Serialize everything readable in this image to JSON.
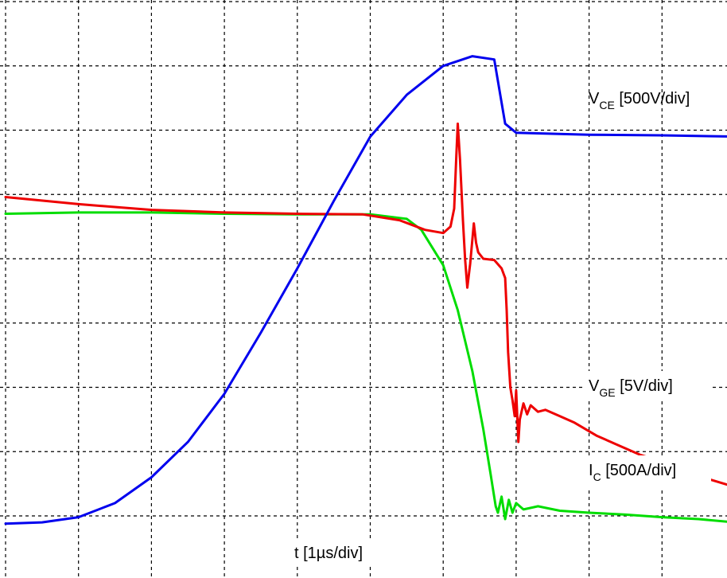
{
  "chart_data": {
    "type": "line",
    "xlabel": "t [1µs/div]",
    "x_unit": "div",
    "y_unit": "div",
    "xlim": [
      0,
      11.2
    ],
    "ylim": [
      -0.5,
      8.5
    ],
    "grid": {
      "x_divisions": 10,
      "y_divisions": 8,
      "style": "dashed",
      "visible": true
    },
    "series": [
      {
        "name_main": "V",
        "name_sub": "CE",
        "name_rest": " [500V/div]",
        "color": "#0000ee",
        "points": [
          [
            0,
            -0.12
          ],
          [
            0.5,
            -0.1
          ],
          [
            1,
            -0.02
          ],
          [
            1.5,
            0.2
          ],
          [
            2,
            0.6
          ],
          [
            2.5,
            1.15
          ],
          [
            3,
            1.9
          ],
          [
            3.5,
            2.85
          ],
          [
            4,
            3.85
          ],
          [
            4.5,
            4.9
          ],
          [
            5,
            5.9
          ],
          [
            5.5,
            6.55
          ],
          [
            6,
            7.0
          ],
          [
            6.4,
            7.15
          ],
          [
            6.7,
            7.1
          ],
          [
            6.85,
            6.1
          ],
          [
            7,
            5.96
          ],
          [
            8,
            5.93
          ],
          [
            9,
            5.92
          ],
          [
            10,
            5.9
          ],
          [
            10.9,
            5.88
          ]
        ]
      },
      {
        "name_main": "V",
        "name_sub": "GE",
        "name_rest": " [5V/div]",
        "color": "#ee0000",
        "points": [
          [
            0,
            4.96
          ],
          [
            1,
            4.85
          ],
          [
            2,
            4.76
          ],
          [
            3,
            4.72
          ],
          [
            4,
            4.7
          ],
          [
            4.9,
            4.69
          ],
          [
            5.4,
            4.6
          ],
          [
            5.75,
            4.45
          ],
          [
            6.0,
            4.4
          ],
          [
            6.1,
            4.5
          ],
          [
            6.15,
            4.78
          ],
          [
            6.18,
            5.6
          ],
          [
            6.2,
            6.1
          ],
          [
            6.23,
            5.55
          ],
          [
            6.27,
            4.6
          ],
          [
            6.3,
            4.0
          ],
          [
            6.33,
            3.55
          ],
          [
            6.37,
            3.92
          ],
          [
            6.42,
            4.55
          ],
          [
            6.45,
            4.25
          ],
          [
            6.48,
            4.1
          ],
          [
            6.55,
            4.0
          ],
          [
            6.7,
            3.98
          ],
          [
            6.8,
            3.85
          ],
          [
            6.85,
            3.7
          ],
          [
            6.87,
            3.2
          ],
          [
            6.89,
            2.55
          ],
          [
            6.92,
            2.0
          ],
          [
            6.95,
            1.8
          ],
          [
            6.98,
            1.55
          ],
          [
            7.0,
            1.95
          ],
          [
            7.03,
            1.15
          ],
          [
            7.05,
            1.5
          ],
          [
            7.1,
            1.75
          ],
          [
            7.15,
            1.58
          ],
          [
            7.2,
            1.72
          ],
          [
            7.3,
            1.62
          ],
          [
            7.4,
            1.65
          ],
          [
            7.6,
            1.55
          ],
          [
            7.8,
            1.45
          ],
          [
            8.1,
            1.25
          ],
          [
            8.4,
            1.1
          ],
          [
            8.7,
            0.95
          ],
          [
            9.0,
            0.85
          ],
          [
            9.5,
            0.62
          ],
          [
            10,
            0.45
          ],
          [
            10.5,
            0.38
          ],
          [
            10.9,
            0.35
          ]
        ]
      },
      {
        "name_main": "I",
        "name_sub": "C",
        "name_rest": " [500A/div]",
        "color": "#00dd00",
        "points": [
          [
            0,
            4.7
          ],
          [
            1,
            4.72
          ],
          [
            2,
            4.72
          ],
          [
            3,
            4.7
          ],
          [
            4,
            4.69
          ],
          [
            5,
            4.69
          ],
          [
            5.5,
            4.62
          ],
          [
            5.7,
            4.45
          ],
          [
            6.0,
            3.9
          ],
          [
            6.2,
            3.2
          ],
          [
            6.4,
            2.25
          ],
          [
            6.55,
            1.35
          ],
          [
            6.65,
            0.65
          ],
          [
            6.72,
            0.15
          ],
          [
            6.75,
            0.05
          ],
          [
            6.8,
            0.3
          ],
          [
            6.85,
            -0.05
          ],
          [
            6.9,
            0.25
          ],
          [
            6.95,
            0.05
          ],
          [
            7.0,
            0.2
          ],
          [
            7.1,
            0.1
          ],
          [
            7.3,
            0.15
          ],
          [
            7.6,
            0.08
          ],
          [
            8.0,
            0.05
          ],
          [
            8.5,
            0.02
          ],
          [
            9.0,
            -0.02
          ],
          [
            9.5,
            -0.05
          ],
          [
            10.0,
            -0.1
          ],
          [
            10.5,
            -0.08
          ],
          [
            10.9,
            -0.05
          ]
        ]
      }
    ]
  }
}
